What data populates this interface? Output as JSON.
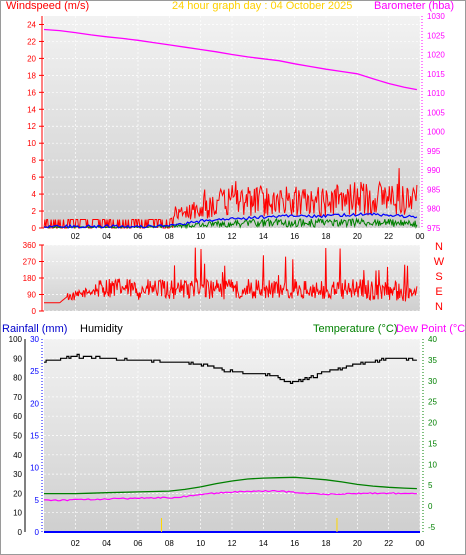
{
  "header": {
    "windspeed_label": "Windspeed (m/s)",
    "title": "24 hour graph day : 04 October 2025",
    "barometer_label": "Barometer (hba)",
    "rainfall_label": "Rainfall (mm)",
    "humidity_label": "Humidity",
    "temperature_label": "Temperature (°C)",
    "dewpoint_label": "Dew Point (°C)"
  },
  "colors": {
    "background": "#ffffff",
    "plot_background": "#d8d8d8",
    "windspeed": "#ff0000",
    "gust": "#ff0000",
    "avg_wind": "#0000ff",
    "wind_green": "#008000",
    "barometer": "#ff00ff",
    "direction": "#ff0000",
    "humidity": "#000000",
    "temperature": "#008000",
    "dewpoint": "#ff00ff",
    "rainfall": "#0000ff",
    "title": "#ffd000",
    "rain_marker": "#ffd700"
  },
  "chart_data": [
    {
      "type": "line",
      "name": "wind-barometer",
      "x_ticks": [
        "02",
        "04",
        "06",
        "08",
        "10",
        "12",
        "14",
        "16",
        "18",
        "20",
        "22",
        "00"
      ],
      "xlim": [
        0,
        24
      ],
      "y_left": {
        "label": "Windspeed (m/s)",
        "ylim": [
          0,
          25
        ],
        "ticks": [
          0,
          2,
          4,
          6,
          8,
          10,
          12,
          14,
          16,
          18,
          20,
          22,
          24
        ]
      },
      "y_right": {
        "label": "Barometer (hba)",
        "ylim": [
          975,
          1030
        ],
        "ticks": [
          975,
          980,
          985,
          990,
          995,
          1000,
          1005,
          1010,
          1015,
          1020,
          1025,
          1030
        ]
      },
      "barometer": {
        "x": [
          0,
          1,
          2,
          3,
          4,
          5,
          6,
          7,
          8,
          9,
          10,
          11,
          12,
          13,
          14,
          15,
          16,
          17,
          18,
          19,
          20,
          21,
          22,
          23,
          23.8
        ],
        "y": [
          1026.5,
          1026.2,
          1025.7,
          1025.1,
          1024.6,
          1024.2,
          1023.7,
          1023.1,
          1022.5,
          1021.9,
          1021.3,
          1020.7,
          1020.0,
          1019.4,
          1018.9,
          1018.4,
          1017.6,
          1016.9,
          1016.2,
          1015.6,
          1015.0,
          1013.7,
          1012.5,
          1011.5,
          1010.9
        ]
      },
      "gust_envelope": {
        "x": [
          0,
          1,
          2,
          3,
          4,
          5,
          6,
          7,
          8,
          8.5,
          9,
          10,
          11,
          12,
          13,
          14,
          15,
          16,
          17,
          18,
          19,
          20,
          21,
          22,
          23,
          23.8
        ],
        "y": [
          1.0,
          1.0,
          1.0,
          1.0,
          1.0,
          1.0,
          1.0,
          1.0,
          1.0,
          1.5,
          2.0,
          2.4,
          3.0,
          3.3,
          3.4,
          3.4,
          3.4,
          3.3,
          3.2,
          3.3,
          3.5,
          3.7,
          3.8,
          3.8,
          3.6,
          3.4
        ]
      },
      "avg_wind": {
        "x": [
          0,
          2,
          4,
          6,
          8,
          9,
          10,
          11,
          12,
          13,
          14,
          15,
          16,
          17,
          18,
          19,
          20,
          21,
          22,
          23,
          23.8
        ],
        "y": [
          0.2,
          0.2,
          0.2,
          0.2,
          0.2,
          0.5,
          0.8,
          1.0,
          1.1,
          1.2,
          1.3,
          1.4,
          1.5,
          1.4,
          1.4,
          1.5,
          1.6,
          1.6,
          1.5,
          1.4,
          1.3
        ]
      },
      "green_wind": {
        "x": [
          0,
          2,
          4,
          6,
          8,
          10,
          12,
          14,
          16,
          18,
          20,
          22,
          23.8
        ],
        "y": [
          0.1,
          0.1,
          0.1,
          0.1,
          0.2,
          0.4,
          0.5,
          0.6,
          0.6,
          0.6,
          0.6,
          0.6,
          0.5
        ]
      }
    },
    {
      "type": "line",
      "name": "wind-direction",
      "xlim": [
        0,
        24
      ],
      "y_left": {
        "ylim": [
          0,
          360
        ],
        "ticks": [
          0,
          90,
          180,
          270,
          360
        ]
      },
      "y_right_labels": [
        "N",
        "W",
        "S",
        "E",
        "N"
      ],
      "direction_envelope": {
        "x": [
          0,
          1,
          1.5,
          2,
          3,
          4,
          5,
          6,
          7,
          8,
          9,
          10,
          11,
          12,
          13,
          14,
          15,
          16,
          17,
          18,
          19,
          20,
          21,
          22,
          23,
          23.8
        ],
        "y": [
          45,
          45,
          80,
          80,
          110,
          130,
          125,
          115,
          120,
          115,
          125,
          120,
          115,
          120,
          125,
          120,
          115,
          120,
          110,
          110,
          115,
          120,
          110,
          115,
          105,
          100
        ]
      }
    },
    {
      "type": "line",
      "name": "rain-humidity-temperature",
      "x_ticks": [
        "02",
        "04",
        "06",
        "08",
        "10",
        "12",
        "14",
        "16",
        "18",
        "20",
        "22",
        "00"
      ],
      "xlim": [
        0,
        24
      ],
      "y_left": {
        "ylim": [
          0,
          100
        ],
        "ticks": [
          0,
          10,
          20,
          30,
          40,
          50,
          60,
          70,
          80,
          90,
          100
        ]
      },
      "y_rain": {
        "ylim": [
          0,
          30
        ],
        "ticks": [
          0,
          5,
          10,
          15,
          20,
          25,
          30
        ]
      },
      "y_right": {
        "ylim": [
          -5,
          40
        ],
        "ticks": [
          -5,
          0,
          5,
          10,
          15,
          20,
          25,
          30,
          35,
          40
        ]
      },
      "humidity": {
        "x": [
          0,
          1,
          2,
          3,
          4,
          5,
          6,
          7,
          8,
          9,
          10,
          11,
          12,
          13,
          14,
          15,
          15.5,
          16,
          17,
          18,
          19,
          20,
          21,
          22,
          23,
          23.8
        ],
        "y": [
          88,
          90,
          91,
          91,
          90,
          89,
          89,
          89,
          88,
          88,
          87,
          85,
          83,
          82,
          82,
          80,
          77,
          78,
          80,
          83,
          85,
          87,
          88,
          90,
          90,
          89
        ]
      },
      "temperature": {
        "x": [
          0,
          1,
          2,
          3,
          4,
          5,
          6,
          7,
          8,
          9,
          10,
          11,
          12,
          13,
          14,
          15,
          16,
          17,
          18,
          19,
          20,
          21,
          22,
          23,
          23.8
        ],
        "y": [
          3.0,
          3.0,
          3.0,
          3.1,
          3.2,
          3.3,
          3.4,
          3.5,
          3.6,
          4.0,
          4.6,
          5.4,
          6.0,
          6.5,
          6.7,
          6.8,
          6.9,
          6.6,
          6.3,
          5.8,
          5.2,
          4.8,
          4.5,
          4.3,
          4.2
        ]
      },
      "dewpoint": {
        "x": [
          0,
          1,
          2,
          3,
          4,
          5,
          6,
          7,
          8,
          9,
          10,
          11,
          12,
          13,
          14,
          15,
          16,
          17,
          18,
          19,
          20,
          21,
          22,
          23,
          23.8
        ],
        "y": [
          1.5,
          1.4,
          1.5,
          1.6,
          1.7,
          1.8,
          1.9,
          2.0,
          2.0,
          2.3,
          2.8,
          3.1,
          3.4,
          3.5,
          3.6,
          3.6,
          3.3,
          3.0,
          2.8,
          2.9,
          3.0,
          3.1,
          3.1,
          3.0,
          3.1
        ]
      },
      "rainfall": {
        "x": [
          0,
          24
        ],
        "y": [
          0,
          0
        ]
      },
      "rain_markers_x": [
        7.5,
        18.7
      ]
    }
  ]
}
